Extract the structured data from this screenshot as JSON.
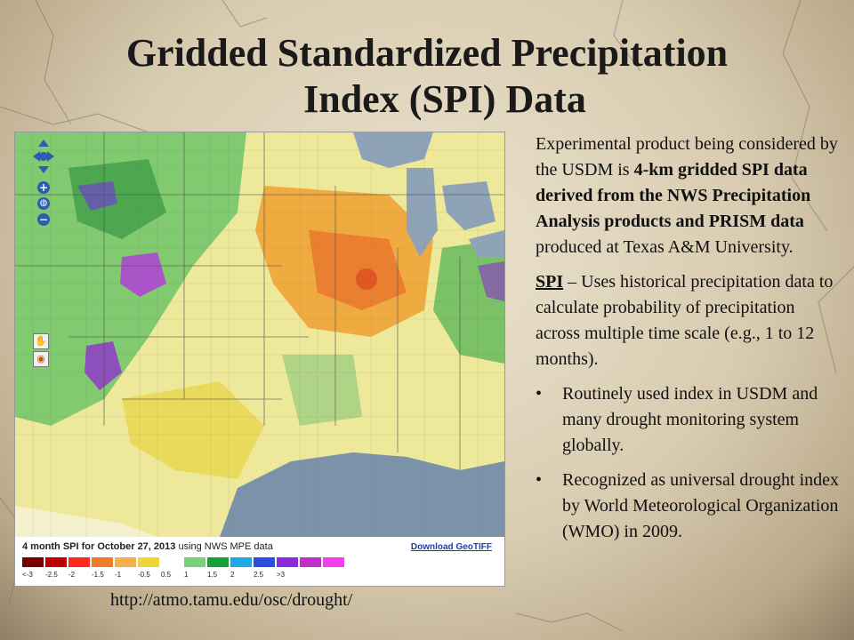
{
  "title": {
    "line1": "Gridded Standardized Precipitation",
    "line2": "Index (SPI) Data"
  },
  "map": {
    "legend_title_bold": "4 month SPI for October 27, 2013",
    "legend_title_rest": " using NWS MPE data",
    "download_label": "Download GeoTIFF",
    "legend_colors": [
      "#7a0000",
      "#c00000",
      "#ff2a1a",
      "#f07c2a",
      "#f5b04a",
      "#ecd63a",
      "",
      "#7ad07a",
      "#15a03a",
      "#1fa8e8",
      "#2a4fe0",
      "#8a2ad8",
      "#c030c8",
      "#f040f0"
    ],
    "legend_ticks": [
      "<-3",
      "-2.5",
      "-2",
      "-1.5",
      "-1",
      "-0.5",
      "0.5",
      "1",
      "1.5",
      "2",
      "2.5",
      ">3"
    ],
    "icons": [
      "pan-icon",
      "zoom-in-icon",
      "globe-icon",
      "zoom-out-icon",
      "hand-icon",
      "target-icon"
    ]
  },
  "source_url": "http://atmo.tamu.edu/osc/drought/",
  "body": {
    "p1_pre": "Experimental product being considered by the USDM is ",
    "p1_bold": "4-km gridded SPI data derived from the NWS Precipitation Analysis products and PRISM data",
    "p1_post": " produced at Texas A&M University.",
    "p2_term": "SPI",
    "p2_rest": " – Uses historical precipitation data to calculate probability of precipitation across multiple time scale (e.g., 1 to 12 months).",
    "bullets": [
      "Routinely used index in USDM and many drought monitoring system globally.",
      "Recognized as universal drought index by World Meteorological Organization (WMO) in 2009."
    ],
    "bullet_symbol": "•"
  }
}
